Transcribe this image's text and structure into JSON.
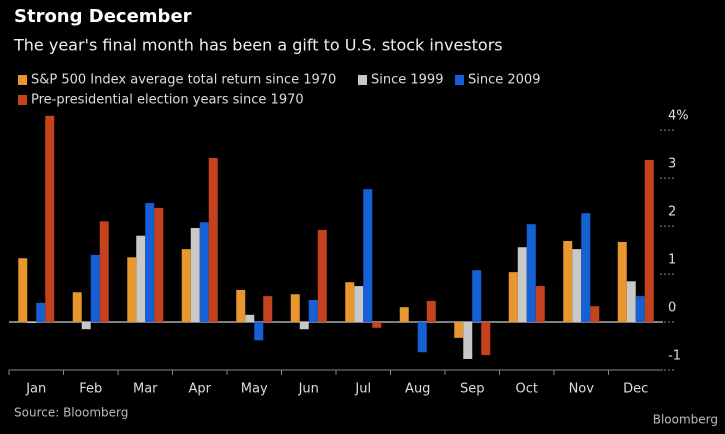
{
  "chart_data": {
    "type": "bar",
    "title": "Strong December",
    "subtitle": "The year's final month has been a gift to U.S. stock investors",
    "categories": [
      "Jan",
      "Feb",
      "Mar",
      "Apr",
      "May",
      "Jun",
      "Jul",
      "Aug",
      "Sep",
      "Oct",
      "Nov",
      "Dec"
    ],
    "series": [
      {
        "name": "S&P 500 Index average total return since 1970",
        "color": "#e8962e",
        "values": [
          1.33,
          0.62,
          1.35,
          1.52,
          0.67,
          0.58,
          0.83,
          0.31,
          -0.33,
          1.04,
          1.69,
          1.67
        ]
      },
      {
        "name": "Since 1999",
        "color": "#c8c8c8",
        "values": [
          -0.02,
          -0.15,
          1.8,
          1.96,
          0.15,
          -0.15,
          0.75,
          0.0,
          -0.77,
          1.56,
          1.52,
          0.85
        ]
      },
      {
        "name": "Since 2009",
        "color": "#1560d4",
        "values": [
          0.4,
          1.4,
          2.48,
          2.08,
          -0.38,
          0.46,
          2.77,
          -0.63,
          1.08,
          2.04,
          2.27,
          0.54
        ]
      },
      {
        "name": "Pre-presidential election years since 1970",
        "color": "#c4431e",
        "values": [
          4.3,
          2.1,
          2.38,
          3.42,
          0.54,
          1.92,
          -0.12,
          0.44,
          -0.69,
          0.75,
          0.33,
          3.38
        ]
      }
    ],
    "ylim": [
      -1,
      4.4
    ],
    "yticks": [
      -1,
      0,
      1,
      2,
      3,
      {
        "value": 4,
        "label": "4%"
      }
    ],
    "source": "Source: Bloomberg",
    "logo": "Bloomberg"
  }
}
